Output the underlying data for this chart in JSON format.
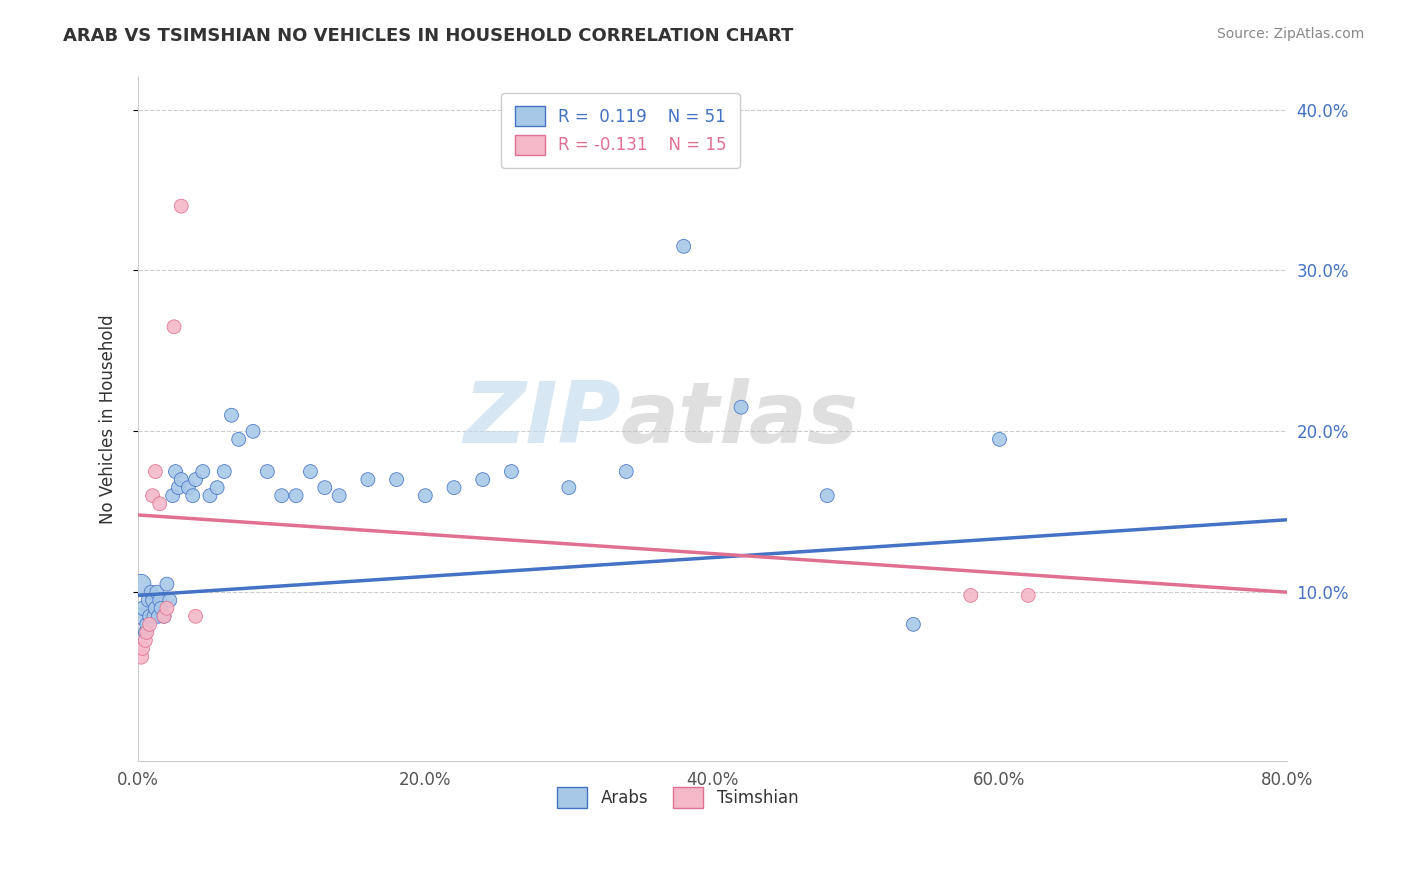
{
  "title": "ARAB VS TSIMSHIAN NO VEHICLES IN HOUSEHOLD CORRELATION CHART",
  "source_text": "Source: ZipAtlas.com",
  "ylabel": "No Vehicles in Household",
  "xlim": [
    0.0,
    0.8
  ],
  "ylim": [
    -0.005,
    0.42
  ],
  "xtick_labels": [
    "0.0%",
    "20.0%",
    "40.0%",
    "60.0%",
    "80.0%"
  ],
  "xtick_vals": [
    0.0,
    0.2,
    0.4,
    0.6,
    0.8
  ],
  "ytick_labels": [
    "10.0%",
    "20.0%",
    "30.0%",
    "40.0%"
  ],
  "ytick_vals": [
    0.1,
    0.2,
    0.3,
    0.4
  ],
  "arab_color": "#a8c8e8",
  "tsimshian_color": "#f4b8c8",
  "arab_line_color": "#4472c4",
  "tsimshian_line_color": "#e07090",
  "legend_arab_label": "Arabs",
  "legend_tsimshian_label": "Tsimshian",
  "r_arab": 0.119,
  "n_arab": 51,
  "r_tsimshian": -0.131,
  "n_tsimshian": 15,
  "watermark_zip": "ZIP",
  "watermark_atlas": "atlas",
  "arab_scatter_x": [
    0.002,
    0.003,
    0.004,
    0.005,
    0.006,
    0.007,
    0.008,
    0.009,
    0.01,
    0.011,
    0.012,
    0.013,
    0.014,
    0.015,
    0.016,
    0.018,
    0.02,
    0.022,
    0.024,
    0.026,
    0.028,
    0.03,
    0.035,
    0.038,
    0.04,
    0.045,
    0.05,
    0.055,
    0.06,
    0.065,
    0.07,
    0.08,
    0.09,
    0.1,
    0.11,
    0.12,
    0.13,
    0.14,
    0.16,
    0.18,
    0.2,
    0.22,
    0.24,
    0.26,
    0.3,
    0.34,
    0.38,
    0.42,
    0.48,
    0.54,
    0.6
  ],
  "arab_scatter_y": [
    0.105,
    0.085,
    0.09,
    0.075,
    0.08,
    0.095,
    0.085,
    0.1,
    0.095,
    0.085,
    0.09,
    0.1,
    0.085,
    0.095,
    0.09,
    0.085,
    0.105,
    0.095,
    0.16,
    0.175,
    0.165,
    0.17,
    0.165,
    0.16,
    0.17,
    0.175,
    0.16,
    0.165,
    0.175,
    0.21,
    0.195,
    0.2,
    0.175,
    0.16,
    0.16,
    0.175,
    0.165,
    0.16,
    0.17,
    0.17,
    0.16,
    0.165,
    0.17,
    0.175,
    0.165,
    0.175,
    0.315,
    0.215,
    0.16,
    0.08,
    0.195
  ],
  "arab_scatter_size": [
    200,
    150,
    120,
    100,
    100,
    100,
    100,
    100,
    100,
    100,
    100,
    100,
    100,
    100,
    100,
    100,
    100,
    100,
    100,
    100,
    100,
    100,
    100,
    100,
    100,
    100,
    100,
    100,
    100,
    100,
    100,
    100,
    100,
    100,
    100,
    100,
    100,
    100,
    100,
    100,
    100,
    100,
    100,
    100,
    100,
    100,
    100,
    100,
    100,
    100,
    100
  ],
  "tsimshian_scatter_x": [
    0.002,
    0.003,
    0.005,
    0.006,
    0.008,
    0.01,
    0.012,
    0.015,
    0.018,
    0.02,
    0.025,
    0.03,
    0.04,
    0.58,
    0.62
  ],
  "tsimshian_scatter_y": [
    0.06,
    0.065,
    0.07,
    0.075,
    0.08,
    0.16,
    0.175,
    0.155,
    0.085,
    0.09,
    0.265,
    0.34,
    0.085,
    0.098,
    0.098
  ],
  "tsimshian_scatter_size": [
    120,
    100,
    100,
    100,
    100,
    100,
    100,
    100,
    100,
    100,
    100,
    100,
    100,
    100,
    100
  ],
  "background_color": "#ffffff",
  "grid_color": "#cccccc",
  "title_color": "#333333"
}
